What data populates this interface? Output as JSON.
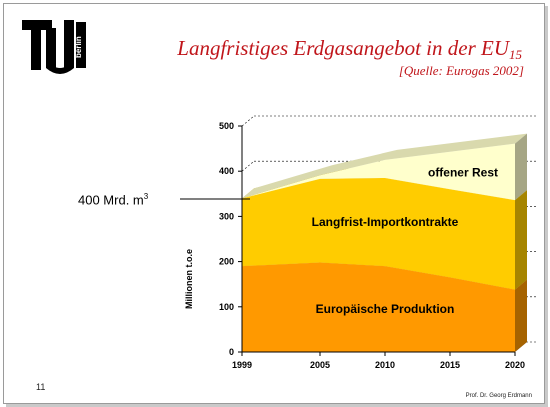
{
  "slide": {
    "title_main": "Langfristiges Erdgasangebot in der EU",
    "title_sub": "15",
    "source": "[Quelle: Eurogas 2002]",
    "page_number": "11",
    "author": "Prof. Dr. Georg Erdmann",
    "logo": {
      "text": "berlin",
      "icon": "tu-berlin-logo"
    }
  },
  "annotation": {
    "label": "400 Mrd. m",
    "superscript": "3",
    "value": 400
  },
  "chart_data": {
    "type": "area",
    "title": "",
    "xlabel": "",
    "ylabel": "Millionen t.o.e",
    "x": [
      1999,
      2005,
      2010,
      2015,
      2020
    ],
    "xticks": [
      "1999",
      "2005",
      "2010",
      "2015",
      "2020"
    ],
    "yticks": [
      "0",
      "100",
      "200",
      "300",
      "400",
      "500"
    ],
    "ylim": [
      0,
      500
    ],
    "xlim": [
      1999,
      2020
    ],
    "stacked": true,
    "grid": true,
    "style": "3d",
    "series": [
      {
        "name": "Europäische Produktion",
        "color": "#ff9900",
        "points": [
          [
            1999,
            190
          ],
          [
            2005,
            198
          ],
          [
            2010,
            190
          ],
          [
            2015,
            165
          ],
          [
            2020,
            138
          ]
        ]
      },
      {
        "name": "Langfrist-Importkontrakte",
        "color": "#ffcc00",
        "points": [
          [
            1999,
            150
          ],
          [
            2005,
            185
          ],
          [
            2010,
            195
          ],
          [
            2015,
            195
          ],
          [
            2020,
            198
          ]
        ]
      },
      {
        "name": "offener Rest",
        "color": "#ffffcc",
        "points": [
          [
            1999,
            0
          ],
          [
            2005,
            8
          ],
          [
            2010,
            40
          ],
          [
            2015,
            83
          ],
          [
            2020,
            125
          ]
        ]
      }
    ]
  }
}
